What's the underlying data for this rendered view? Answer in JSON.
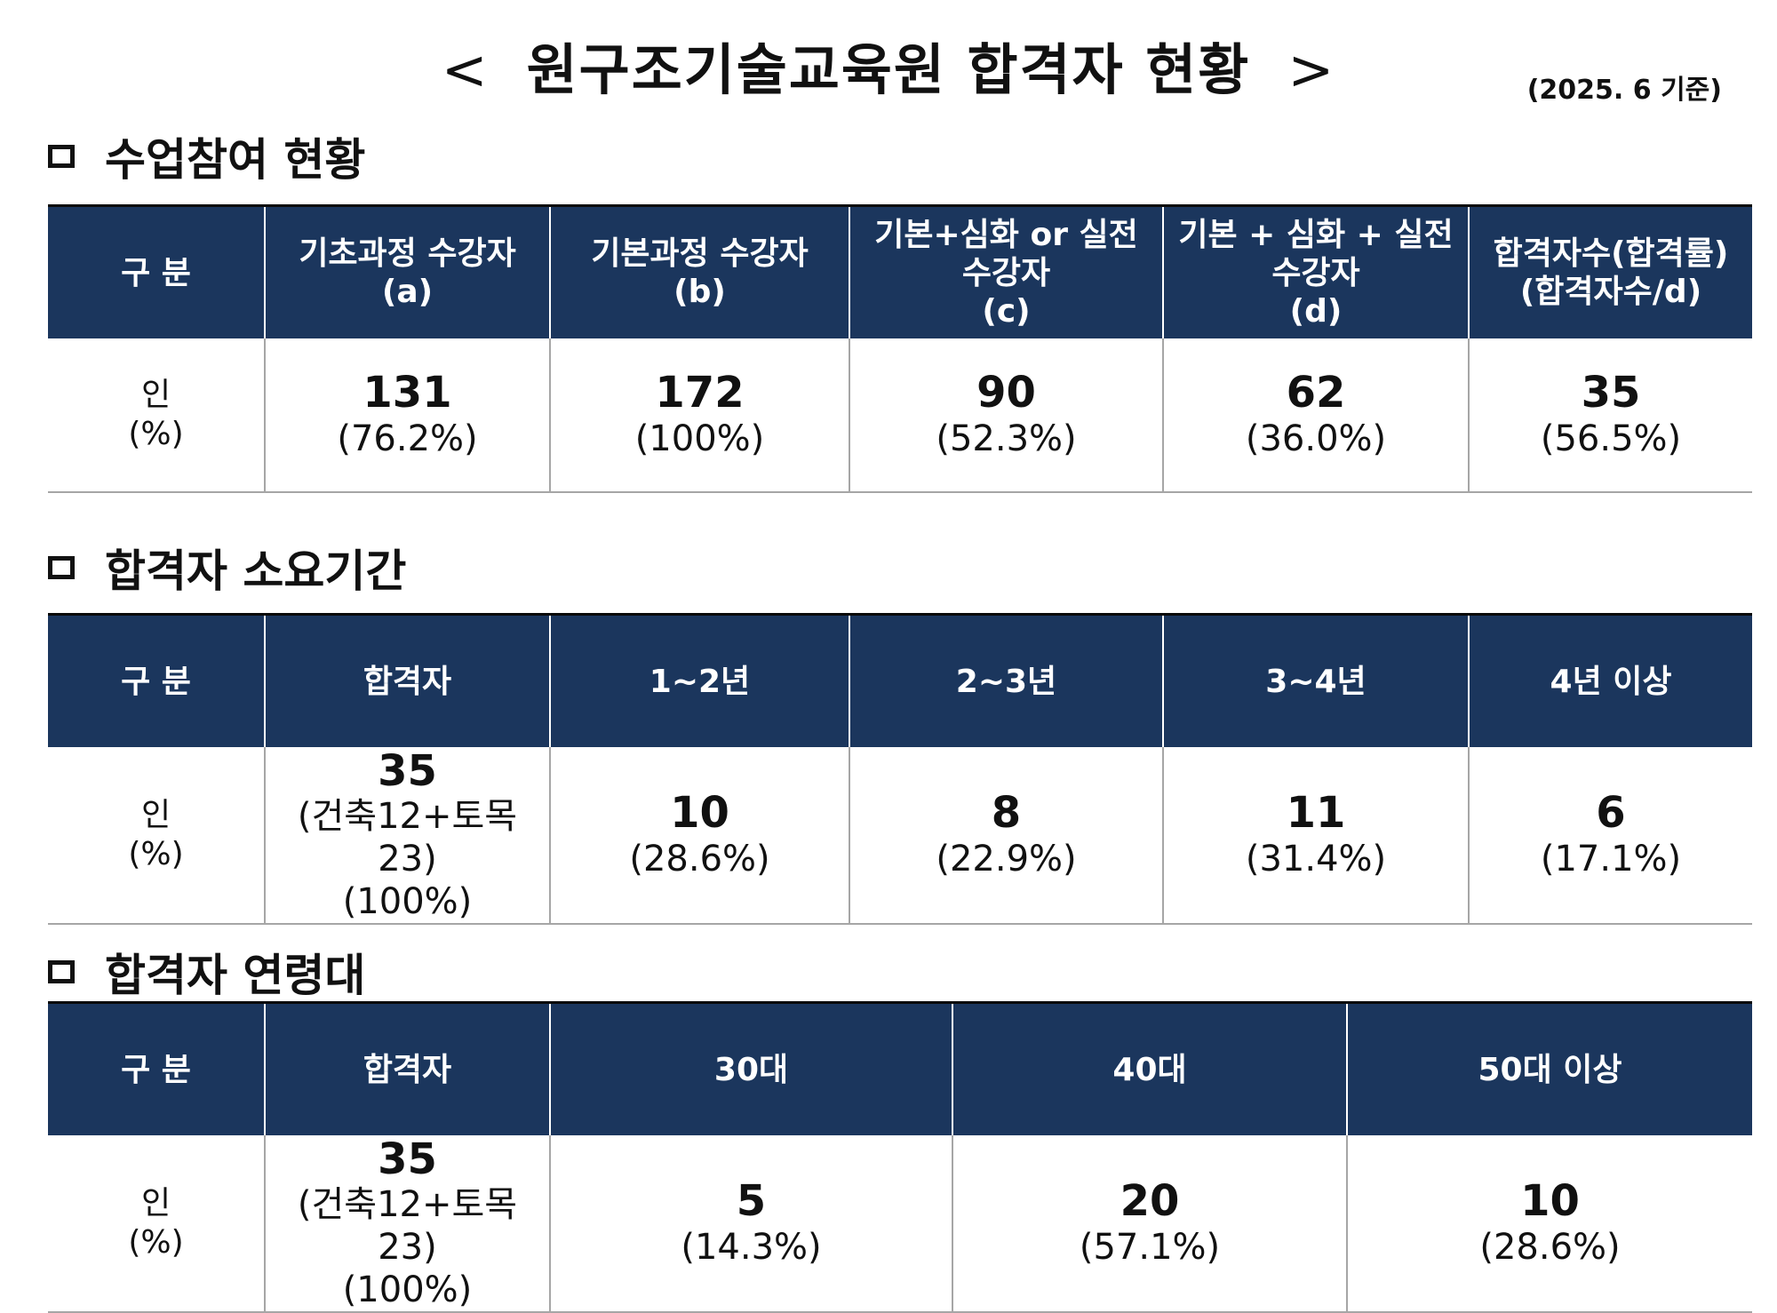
{
  "title": {
    "open": "<",
    "text": "원구조기술교육원 합격자 현황",
    "close": ">",
    "as_of": "(2025. 6 기준)"
  },
  "sections": [
    {
      "heading": "수업참여 현황",
      "headers": [
        [
          "구 분"
        ],
        [
          "기초과정 수강자",
          "(a)"
        ],
        [
          "기본과정 수강자",
          "(b)"
        ],
        [
          "기본+심화 or 실전",
          "수강자",
          "(c)"
        ],
        [
          "기본 + 심화 + 실전",
          "수강자",
          "(d)"
        ],
        [
          "합격자수(합격률)",
          "(합격자수/d)"
        ]
      ],
      "row_label": [
        "인",
        "(%)"
      ],
      "cells": [
        {
          "value": "131",
          "pct": "(76.2%)"
        },
        {
          "value": "172",
          "pct": "(100%)"
        },
        {
          "value": "90",
          "pct": "(52.3%)"
        },
        {
          "value": "62",
          "pct": "(36.0%)"
        },
        {
          "value": "35",
          "pct": "(56.5%)"
        }
      ]
    },
    {
      "heading": "합격자 소요기간",
      "headers": [
        [
          "구 분"
        ],
        [
          "합격자"
        ],
        [
          "1~2년"
        ],
        [
          "2~3년"
        ],
        [
          "3~4년"
        ],
        [
          "4년 이상"
        ]
      ],
      "row_label": [
        "인",
        "(%)"
      ],
      "cells": [
        {
          "value": "35",
          "detail": "(건축12+토목23)",
          "pct": "(100%)"
        },
        {
          "value": "10",
          "pct": "(28.6%)"
        },
        {
          "value": "8",
          "pct": "(22.9%)"
        },
        {
          "value": "11",
          "pct": "(31.4%)"
        },
        {
          "value": "6",
          "pct": "(17.1%)"
        }
      ]
    },
    {
      "heading": "합격자 연령대",
      "headers": [
        [
          "구 분"
        ],
        [
          "합격자"
        ],
        [
          "30대"
        ],
        [
          "40대"
        ],
        [
          "50대 이상"
        ]
      ],
      "row_label": [
        "인",
        "(%)"
      ],
      "cells": [
        {
          "value": "35",
          "detail": "(건축12+토목23)",
          "pct": "(100%)"
        },
        {
          "value": "5",
          "pct": "(14.3%)"
        },
        {
          "value": "20",
          "pct": "(57.1%)"
        },
        {
          "value": "10",
          "pct": "(28.6%)"
        }
      ]
    }
  ],
  "colors": {
    "header_bg": "#1b365d",
    "header_text": "#ffffff",
    "grid": "#a6a6a6"
  }
}
